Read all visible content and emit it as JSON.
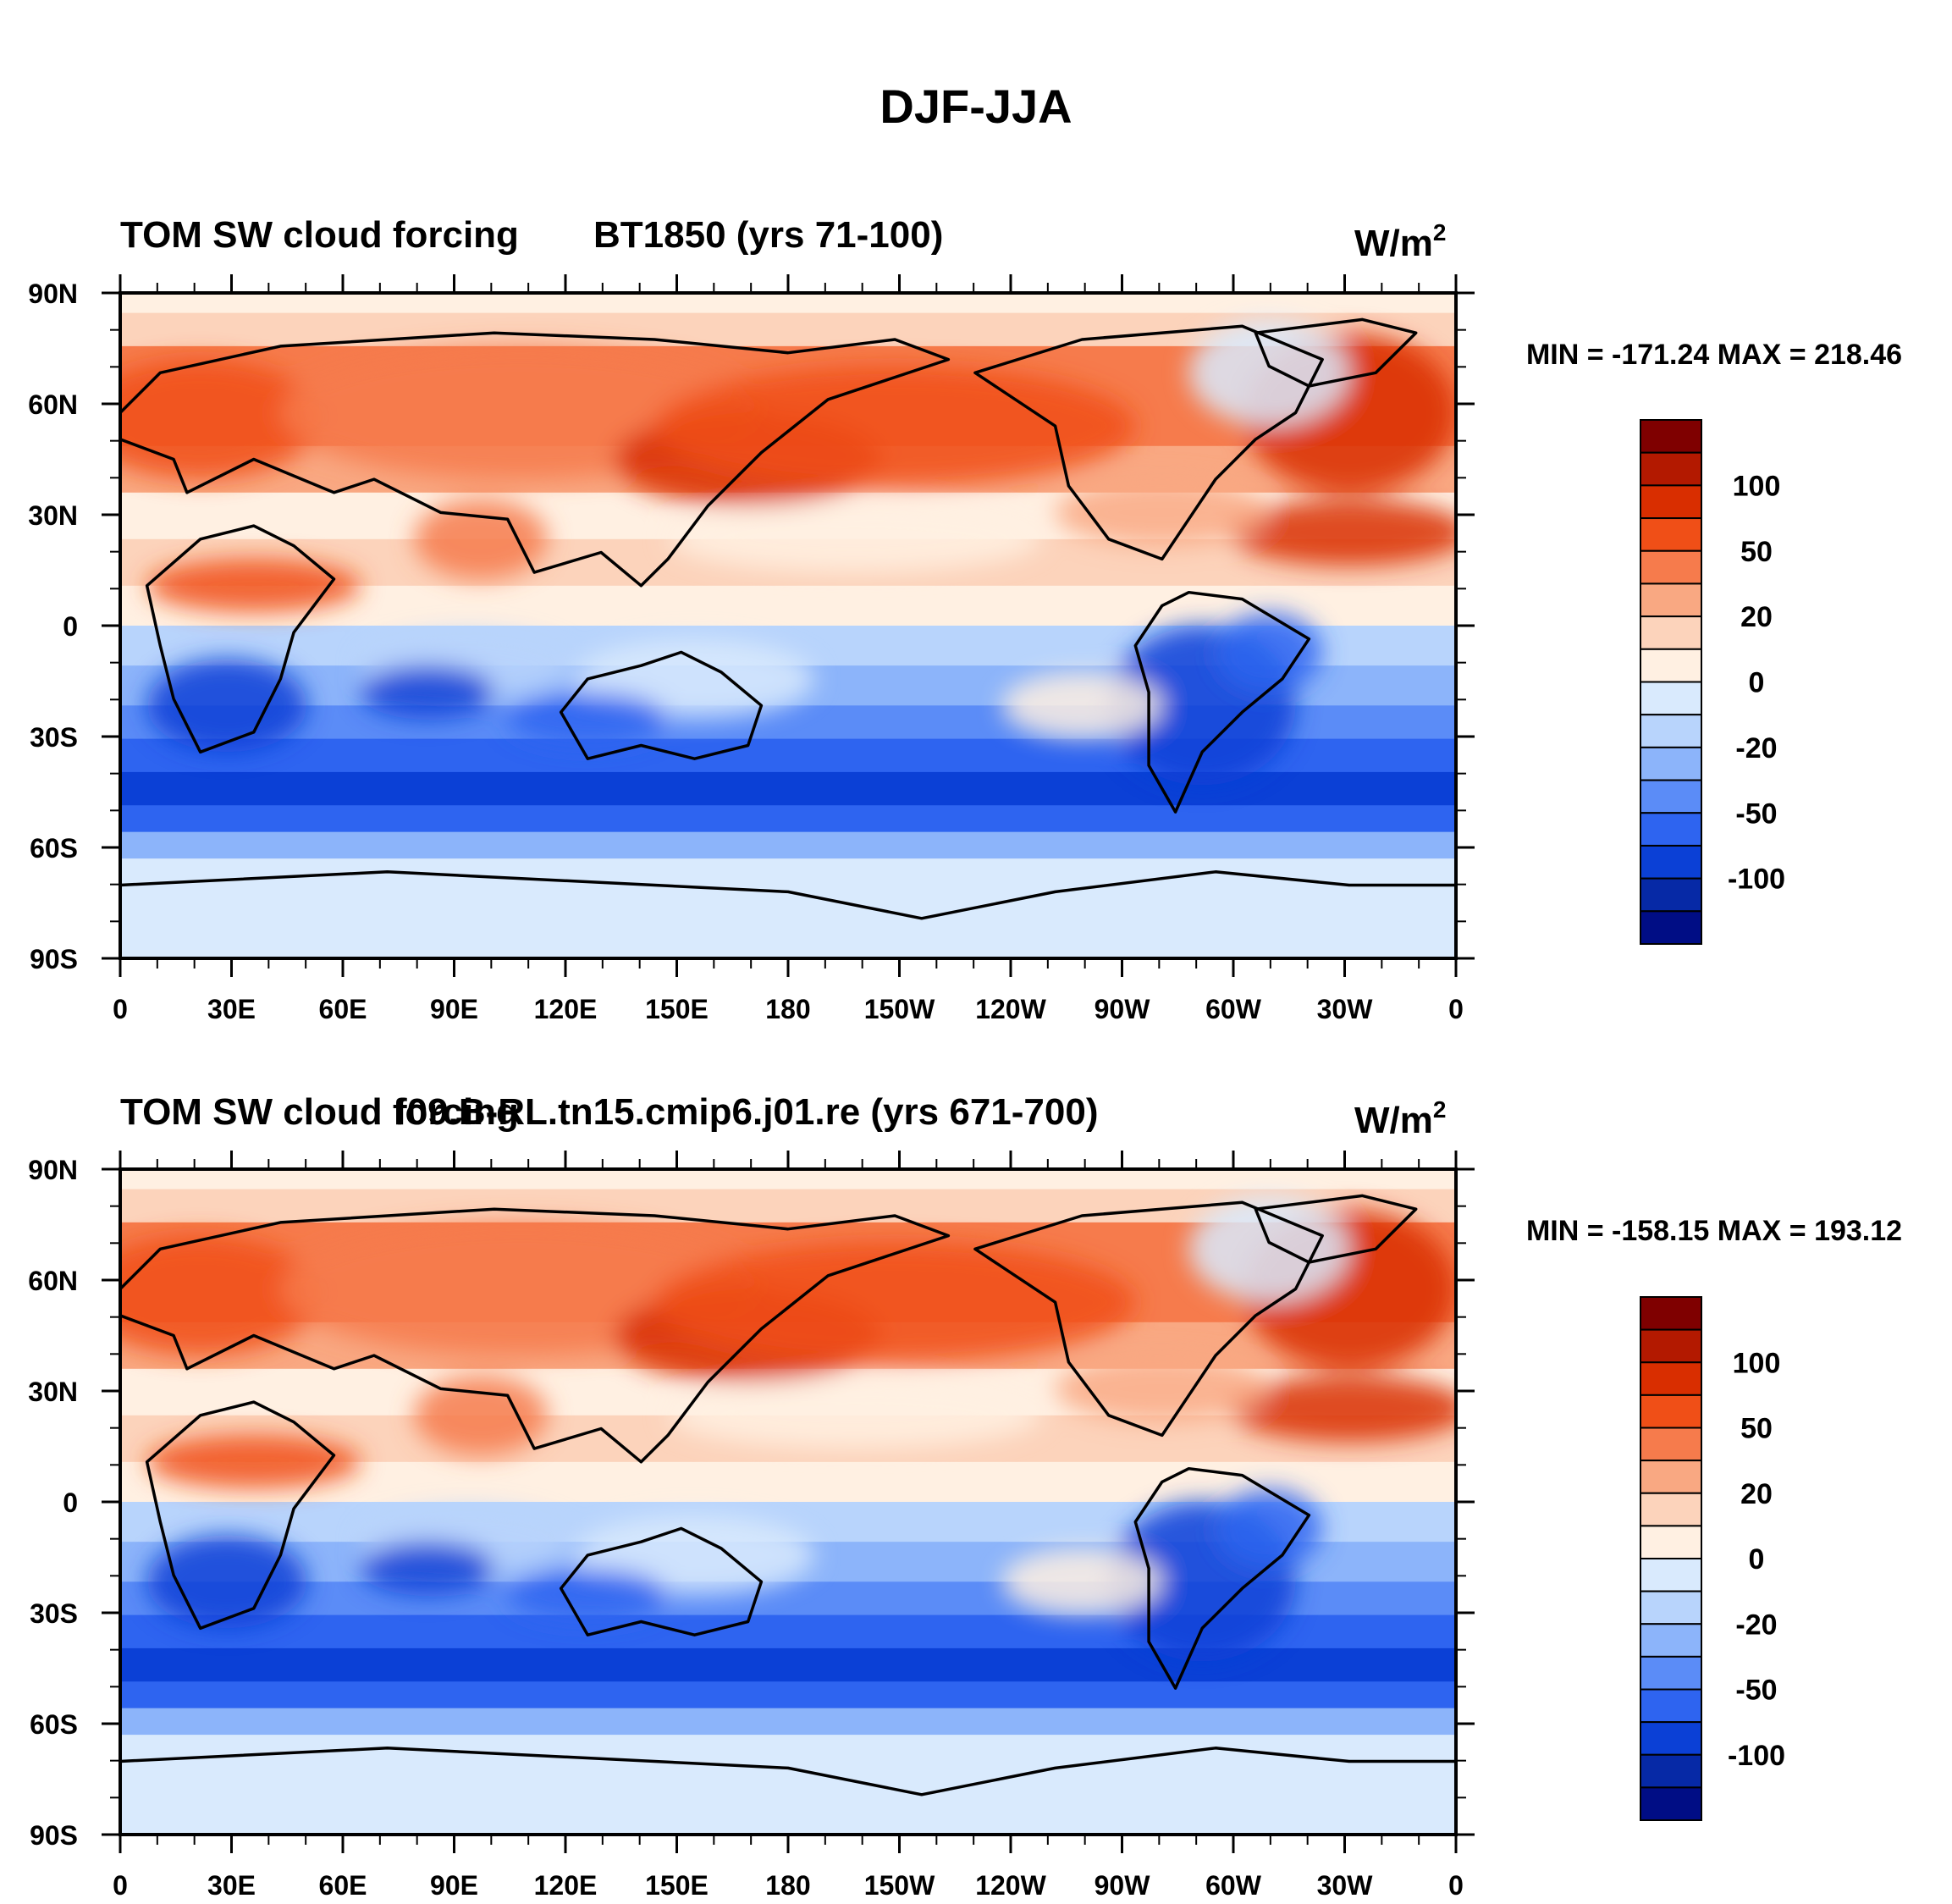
{
  "figure": {
    "title": "DJF-JJA"
  },
  "longitude_ticks": [
    "0",
    "30E",
    "60E",
    "90E",
    "120E",
    "150E",
    "180",
    "150W",
    "120W",
    "90W",
    "60W",
    "30W",
    "0"
  ],
  "latitude_ticks": [
    "90N",
    "60N",
    "30N",
    "0",
    "30S",
    "60S",
    "90S"
  ],
  "colorbar": {
    "levels": [
      "100",
      "50",
      "20",
      "0",
      "-20",
      "-50",
      "-100"
    ],
    "colors": [
      "#7f0000",
      "#b31900",
      "#d92e00",
      "#f04f17",
      "#f67b4c",
      "#f9a882",
      "#fcd3bb",
      "#fff0e2",
      "#d9eafd",
      "#b8d4fc",
      "#8cb4fa",
      "#5b8cf7",
      "#2e64f0",
      "#0b40d6",
      "#0629a6",
      "#000d85"
    ]
  },
  "panels": [
    {
      "title_left": "TOM SW cloud forcing",
      "title_center": "BT1850 (yrs 71-100)",
      "units": "W/m",
      "units_sup": "2",
      "stats": "MIN = -171.24 MAX = 218.46"
    },
    {
      "title_left": "TOM SW cloud forcing",
      "title_center": "f09.B-RL.tn15.cmip6.j01.re (yrs 671-700)",
      "units": "W/m",
      "units_sup": "2",
      "stats": "MIN = -158.15 MAX = 193.12"
    }
  ]
}
